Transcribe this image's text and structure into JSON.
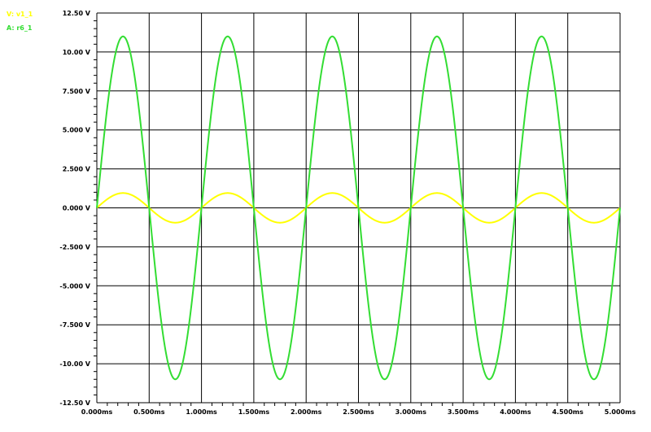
{
  "chart_data": {
    "type": "line",
    "title": "",
    "xlabel": "",
    "ylabel": "",
    "x_ticks": [
      "0.000ms",
      "0.500ms",
      "1.000ms",
      "1.500ms",
      "2.000ms",
      "2.500ms",
      "3.000ms",
      "3.500ms",
      "4.000ms",
      "4.500ms",
      "5.000ms"
    ],
    "y_ticks": [
      "12.50 V",
      "10.00 V",
      "7.500 V",
      "5.000 V",
      "2.500 V",
      "0.000 V",
      "-2.500 V",
      "-5.000 V",
      "-7.500 V",
      "-10.00 V",
      "-12.50 V"
    ],
    "xlim": [
      0,
      5.0
    ],
    "ylim": [
      -12.5,
      12.5
    ],
    "x_unit": "ms",
    "y_unit": "V",
    "grid": true,
    "legend_placement": "top-left",
    "series": [
      {
        "name": "V: v1_1",
        "color": "#ffff00",
        "shape": "sine",
        "amplitude": 0.95,
        "frequency_khz": 1.0,
        "phase": 0,
        "x": [
          0,
          0.125,
          0.25,
          0.375,
          0.5,
          0.625,
          0.75,
          0.875,
          1.0,
          1.125,
          1.25,
          1.375,
          1.5,
          1.625,
          1.75,
          1.875,
          2.0,
          2.125,
          2.25,
          2.375,
          2.5,
          2.625,
          2.75,
          2.875,
          3.0,
          3.125,
          3.25,
          3.375,
          3.5,
          3.625,
          3.75,
          3.875,
          4.0,
          4.125,
          4.25,
          4.375,
          4.5,
          4.625,
          4.75,
          4.875,
          5.0
        ],
        "y": [
          0,
          0.67,
          0.95,
          0.67,
          0,
          -0.67,
          -0.95,
          -0.67,
          0,
          0.67,
          0.95,
          0.67,
          0,
          -0.67,
          -0.95,
          -0.67,
          0,
          0.67,
          0.95,
          0.67,
          0,
          -0.67,
          -0.95,
          -0.67,
          0,
          0.67,
          0.95,
          0.67,
          0,
          -0.67,
          -0.95,
          -0.67,
          0,
          0.67,
          0.95,
          0.67,
          0,
          -0.67,
          -0.95,
          -0.67,
          0
        ]
      },
      {
        "name": "A: r6_1",
        "color": "#33dd33",
        "shape": "sine",
        "amplitude": 11.0,
        "frequency_khz": 1.0,
        "phase": 0,
        "x": [
          0,
          0.125,
          0.25,
          0.375,
          0.5,
          0.625,
          0.75,
          0.875,
          1.0,
          1.125,
          1.25,
          1.375,
          1.5,
          1.625,
          1.75,
          1.875,
          2.0,
          2.125,
          2.25,
          2.375,
          2.5,
          2.625,
          2.75,
          2.875,
          3.0,
          3.125,
          3.25,
          3.375,
          3.5,
          3.625,
          3.75,
          3.875,
          4.0,
          4.125,
          4.25,
          4.375,
          4.5,
          4.625,
          4.75,
          4.875,
          5.0
        ],
        "y": [
          0,
          7.78,
          11.0,
          7.78,
          0,
          -7.78,
          -11.0,
          -7.78,
          0,
          7.78,
          11.0,
          7.78,
          0,
          -7.78,
          -11.0,
          -7.78,
          0,
          7.78,
          11.0,
          7.78,
          0,
          -7.78,
          -11.0,
          -7.78,
          0,
          7.78,
          11.0,
          7.78,
          0,
          -7.78,
          -11.0,
          -7.78,
          0,
          7.78,
          11.0,
          7.78,
          0,
          -7.78,
          -11.0,
          -7.78,
          0
        ]
      }
    ]
  },
  "legend": [
    {
      "label": "V: v1_1",
      "color": "#ffff00"
    },
    {
      "label": "A: r6_1",
      "color": "#33dd33"
    }
  ]
}
